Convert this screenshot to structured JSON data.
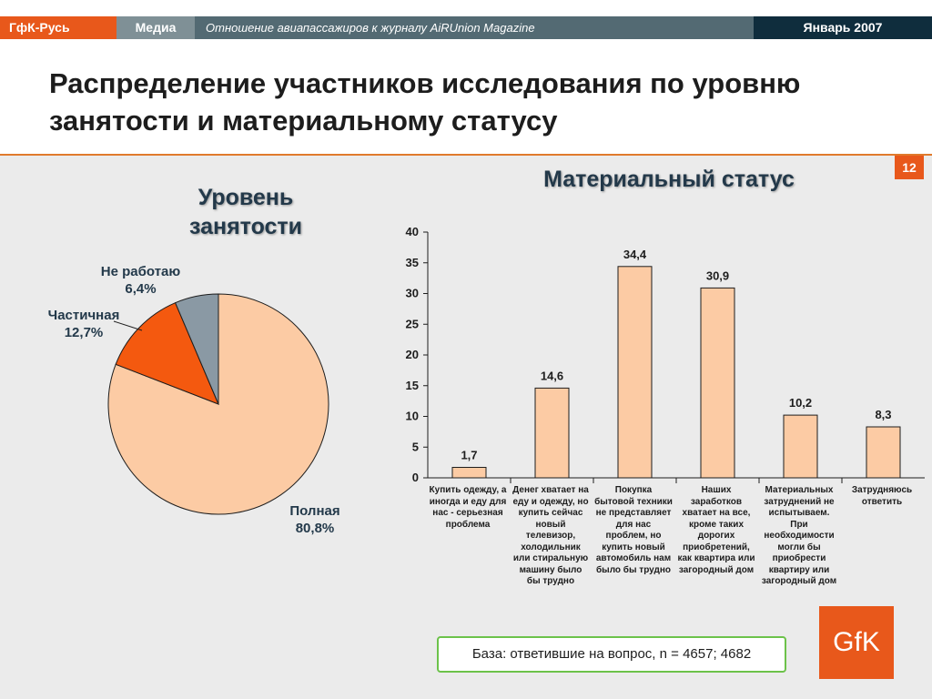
{
  "header": {
    "brand": "ГфК-Русь",
    "section": "Медиа",
    "subtitle": "Отношение авиапассажиров к журналу AiRUnion Magazine",
    "date": "Январь 2007"
  },
  "title": "Распределение участников исследования по уровню занятости и материальному статусу",
  "page_number": "12",
  "base_note": "База: ответившие на вопрос, n = 4657; 4682",
  "logo_text": "GfK",
  "colors": {
    "accent_orange": "#e8581b",
    "pie_full": "#fccba4",
    "pie_partial": "#f4590f",
    "pie_none": "#8a99a4",
    "bar_fill": "#fccba4"
  },
  "chart_data": [
    {
      "type": "pie",
      "title": "Уровень занятости",
      "slices": [
        {
          "label": "Полная",
          "value": 80.8,
          "value_label": "80,8%"
        },
        {
          "label": "Частичная",
          "value": 12.7,
          "value_label": "12,7%"
        },
        {
          "label": "Не работаю",
          "value": 6.4,
          "value_label": "6,4%"
        }
      ]
    },
    {
      "type": "bar",
      "title": "Материальный статус",
      "ylim": [
        0,
        40
      ],
      "yticks": [
        "0",
        "5",
        "10",
        "15",
        "20",
        "25",
        "30",
        "35",
        "40"
      ],
      "categories": [
        "Купить одежду, а иногда и еду для нас - серьезная проблема",
        "Денег хватает на еду и одежду, но купить сейчас новый телевизор, холодильник или стиральную машину было бы трудно",
        "Покупка бытовой техники не представляет для нас проблем, но купить новый автомобиль нам было бы трудно",
        "Наших заработков хватает на все, кроме таких дорогих приобретений, как квартира или загородный дом",
        "Материальных затруднений не испытываем. При необходимости могли бы приобрести квартиру или загородный дом",
        "Затрудняюсь ответить"
      ],
      "values": [
        1.7,
        14.6,
        34.4,
        30.9,
        10.2,
        8.3
      ],
      "value_labels": [
        "1,7",
        "14,6",
        "34,4",
        "30,9",
        "10,2",
        "8,3"
      ]
    }
  ]
}
